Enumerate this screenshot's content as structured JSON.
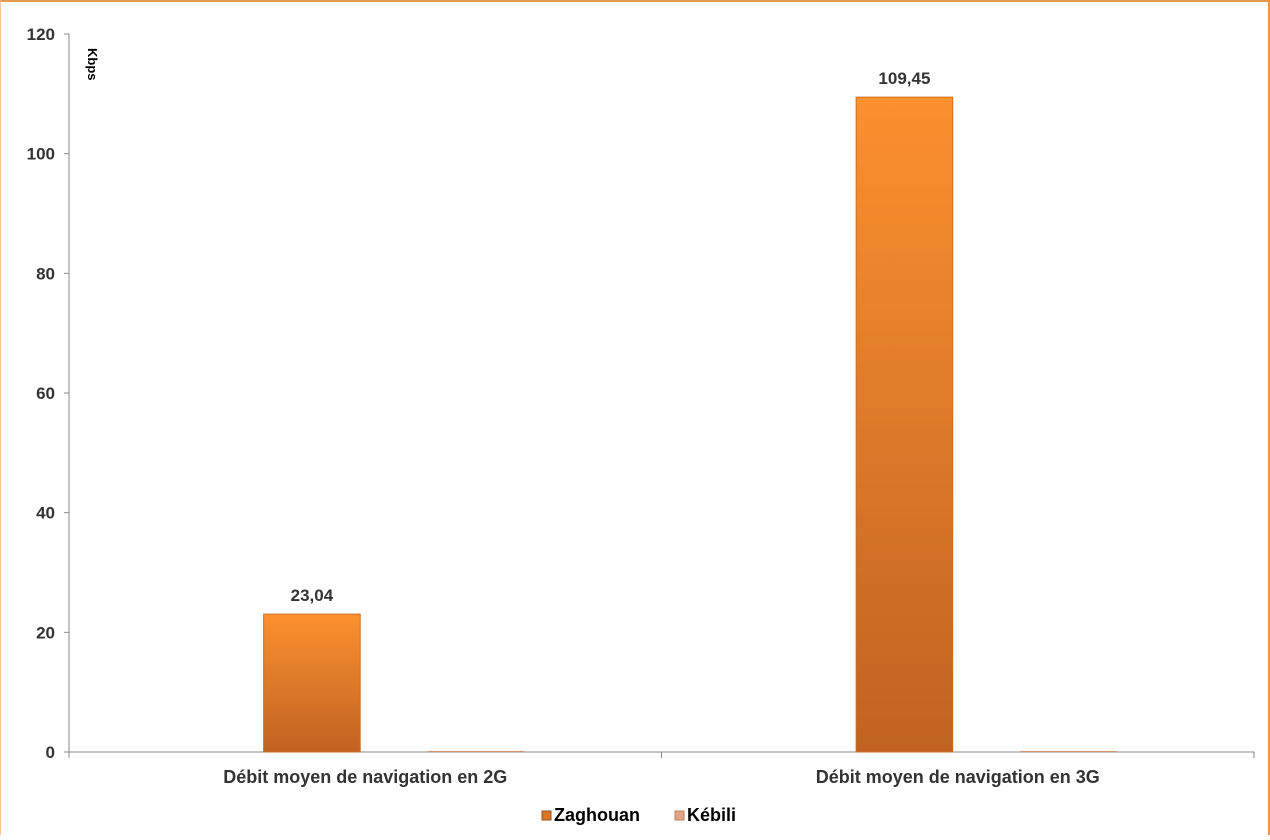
{
  "chart_data": {
    "type": "bar",
    "title": "",
    "xlabel": "",
    "ylabel": "Kbps",
    "categories": [
      "Débit moyen de navigation en 2G",
      "Débit moyen de navigation en 3G"
    ],
    "series": [
      {
        "name": "Zaghouan",
        "values": [
          23.04,
          109.45
        ],
        "labels": [
          "23,04",
          "109,45"
        ],
        "color": "#f08a2a"
      },
      {
        "name": "Kébili",
        "values": [
          0,
          0
        ],
        "labels": [
          "",
          ""
        ],
        "color": "#d98f6b"
      }
    ],
    "ylim": [
      0,
      120
    ],
    "yticks": [
      0,
      20,
      40,
      60,
      80,
      100,
      120
    ],
    "grid": false,
    "legend": "bottom"
  }
}
